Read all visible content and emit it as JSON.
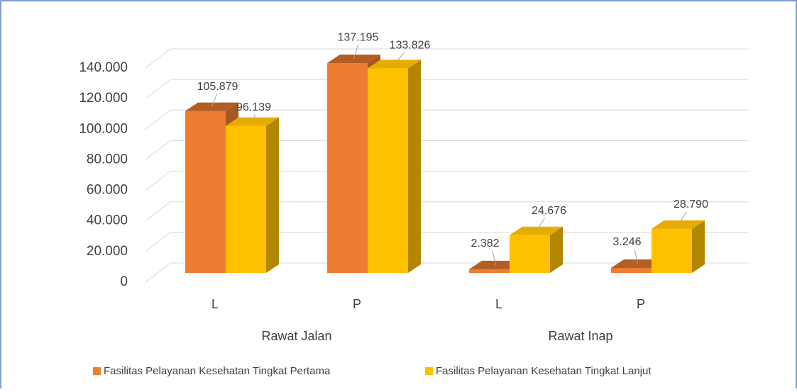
{
  "chart_data": {
    "type": "bar3d",
    "categories": [
      "L",
      "P",
      "L",
      "P"
    ],
    "groups": [
      "Rawat Jalan",
      "Rawat Inap"
    ],
    "series": [
      {
        "name": "Fasilitas Pelayanan Kesehatan Tingkat Pertama",
        "color": "#ed7d31",
        "values": [
          105879,
          137195,
          2382,
          3246
        ],
        "value_labels": [
          "105.879",
          "137.195",
          "2.382",
          "3.246"
        ]
      },
      {
        "name": "Fasilitas Pelayanan Kesehatan Tingkat Lanjut",
        "color": "#ffc000",
        "values": [
          96139,
          133826,
          24676,
          28790
        ],
        "value_labels": [
          "96.139",
          "133.826",
          "24.676",
          "28.790"
        ]
      }
    ],
    "ylim": [
      0,
      140000
    ],
    "yticks": [
      0,
      {
        "value": 20000,
        "label": "20.000"
      },
      {
        "value": 40000,
        "label": "40.000"
      },
      {
        "value": 60000,
        "label": "60.000"
      },
      {
        "value": 80000,
        "label": "80.000"
      },
      {
        "value": 100000,
        "label": "100.000"
      },
      {
        "value": 120000,
        "label": "120.000"
      },
      {
        "value": 140000,
        "label": "140.000"
      }
    ],
    "grid": true,
    "legend": "bottom"
  }
}
